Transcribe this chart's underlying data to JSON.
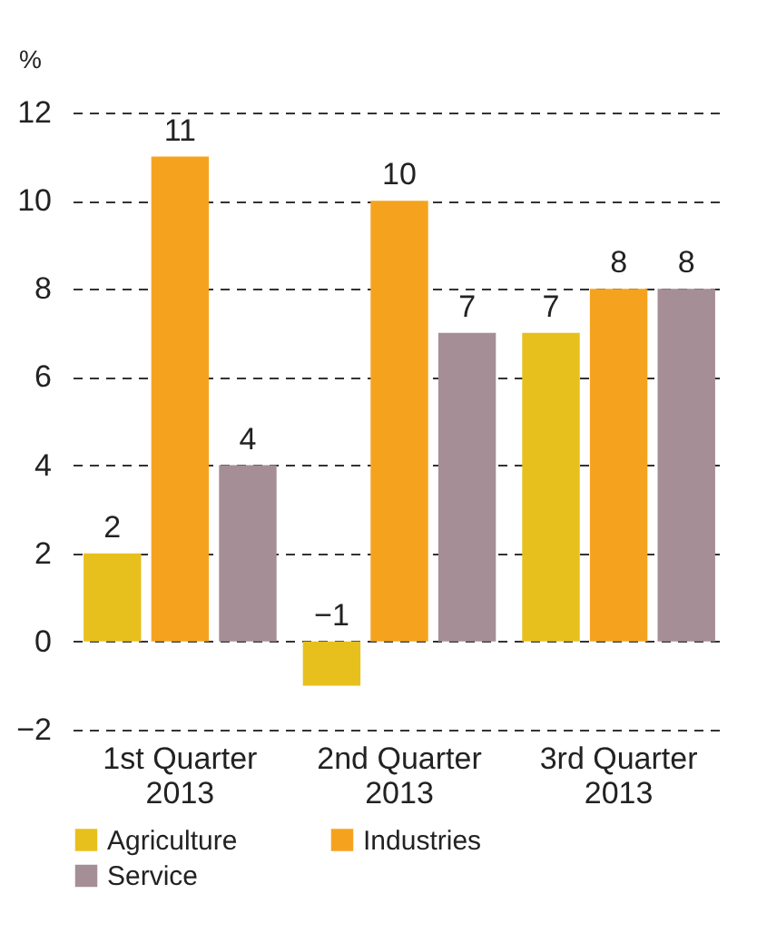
{
  "chart_data": {
    "type": "bar",
    "ylabel": "%",
    "categories": [
      "1st Quarter\n2013",
      "2nd Quarter\n2013",
      "3rd Quarter\n2013"
    ],
    "series": [
      {
        "name": "Agriculture",
        "color": "#e8c01e",
        "values": [
          2,
          -1,
          7
        ]
      },
      {
        "name": "Industries",
        "color": "#f5a31f",
        "values": [
          11,
          10,
          8
        ]
      },
      {
        "name": "Service",
        "color": "#a68e96",
        "values": [
          4,
          7,
          8
        ]
      }
    ],
    "ylim": [
      -2,
      12
    ],
    "yticks": [
      -2,
      0,
      2,
      4,
      6,
      8,
      10,
      12
    ],
    "grid": "y",
    "legend": "bottom",
    "data_labels": true
  }
}
